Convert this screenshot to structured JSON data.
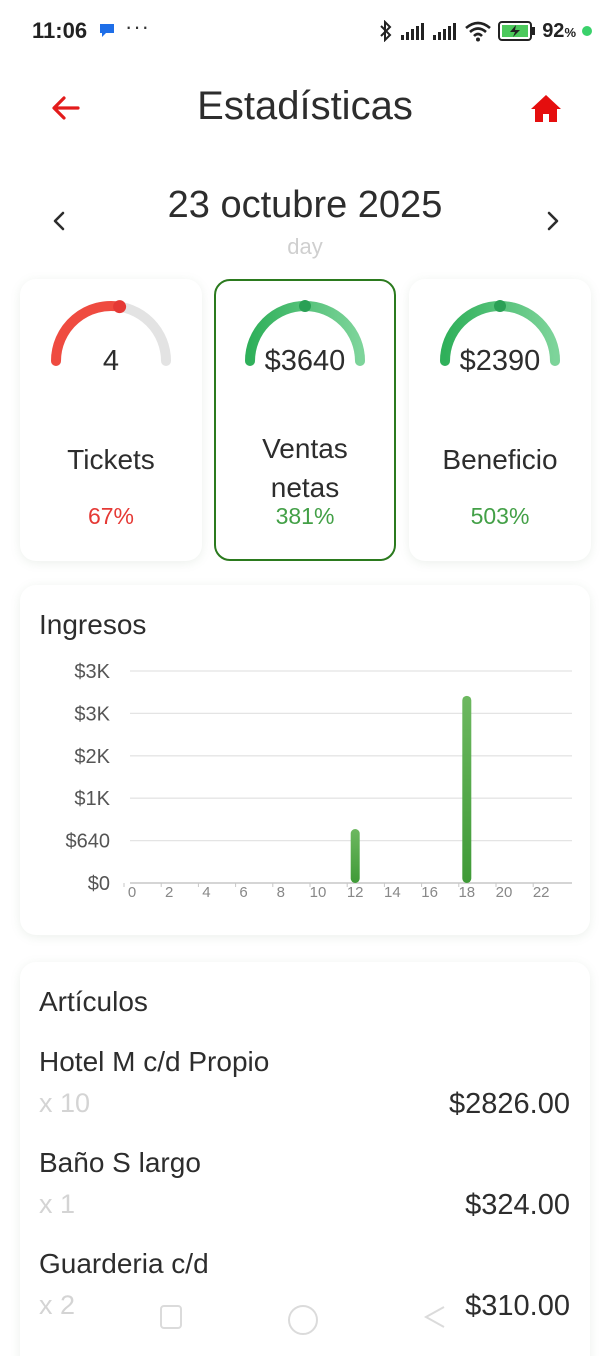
{
  "status_bar": {
    "time": "11:06",
    "more": "···",
    "battery": "92",
    "battery_unit": "%"
  },
  "header": {
    "title": "Estadísticas",
    "back_icon": "arrow-left-icon",
    "home_icon": "home-icon"
  },
  "date_nav": {
    "date": "23 octubre 2025",
    "period": "day",
    "prev_icon": "chevron-left-icon",
    "next_icon": "chevron-right-icon"
  },
  "stats": [
    {
      "value": "4",
      "label": "Tickets",
      "pct": "67%",
      "pct_color": "#e53935",
      "gauge_color": "#ef4b40",
      "gauge_fraction": 0.55,
      "selected": false
    },
    {
      "value": "$3640",
      "label_lines": [
        "Ventas",
        "netas"
      ],
      "pct": "381%",
      "pct_color": "#43a047",
      "gauge_color": "#2fb05a",
      "gauge_fraction": 1.0,
      "selected": true
    },
    {
      "value": "$2390",
      "label": "Beneficio",
      "pct": "503%",
      "pct_color": "#43a047",
      "gauge_color": "#2fb05a",
      "gauge_fraction": 1.0,
      "selected": false
    }
  ],
  "chart_title": "Ingresos",
  "chart_data": {
    "type": "bar",
    "title": "Ingresos",
    "x": [
      0,
      2,
      4,
      6,
      8,
      10,
      12,
      14,
      16,
      18,
      20,
      22
    ],
    "x_tick_labels": [
      "0",
      "2",
      "4",
      "6",
      "8",
      "10",
      "12",
      "14",
      "16",
      "18",
      "20",
      "22"
    ],
    "y_tick_labels": [
      "$0",
      "$640",
      "$1K",
      "$2K",
      "$3K",
      "$3K"
    ],
    "y_ticks": [
      0,
      640,
      1280,
      1920,
      2560,
      3200
    ],
    "ylim": [
      0,
      3200
    ],
    "bars": [
      {
        "x": 12,
        "value": 815
      },
      {
        "x": 18,
        "value": 2825
      }
    ],
    "bar_color": "#3f9a37",
    "grid": true
  },
  "articles_title": "Artículos",
  "articles": [
    {
      "name": "Hotel M c/d Propio",
      "qty": "x 10",
      "price": "$2826.00"
    },
    {
      "name": "Baño S largo",
      "qty": "x 1",
      "price": "$324.00"
    },
    {
      "name": "Guarderia c/d",
      "qty": "x 2",
      "price": "$310.00"
    }
  ]
}
